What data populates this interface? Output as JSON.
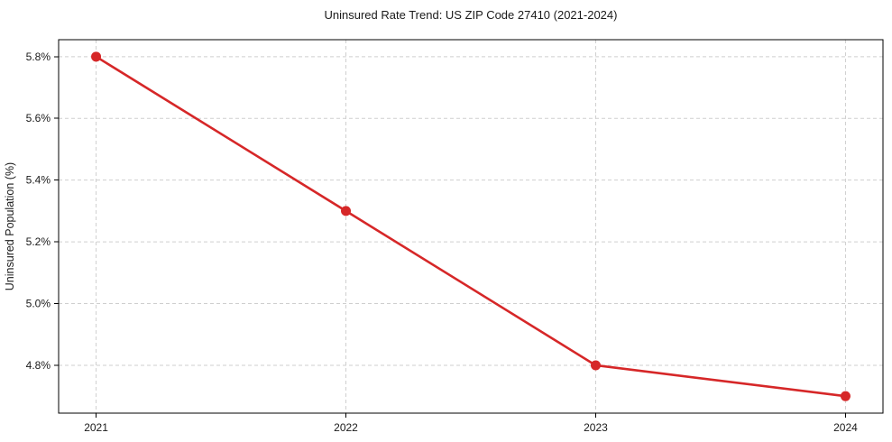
{
  "chart_data": {
    "type": "line",
    "title": "Uninsured Rate Trend: US ZIP Code 27410 (2021-2024)",
    "xlabel": "",
    "ylabel": "Uninsured Population (%)",
    "x": [
      2021,
      2022,
      2023,
      2024
    ],
    "values": [
      5.8,
      5.3,
      4.8,
      4.7
    ],
    "xticks": [
      2021,
      2022,
      2023,
      2024
    ],
    "xtick_labels": [
      "2021",
      "2022",
      "2023",
      "2024"
    ],
    "yticks": [
      4.8,
      5.0,
      5.2,
      5.4,
      5.6,
      5.8
    ],
    "ytick_labels": [
      "4.8%",
      "5.0%",
      "5.2%",
      "5.4%",
      "5.6%",
      "5.8%"
    ],
    "xlim": [
      2020.85,
      2024.15
    ],
    "ylim": [
      4.645,
      5.855
    ],
    "grid": true,
    "legend_position": "none",
    "line_color": "#d62728",
    "marker": "circle",
    "grid_color": "#cfcfcf",
    "spine_color": "#000000",
    "background": "#ffffff"
  }
}
